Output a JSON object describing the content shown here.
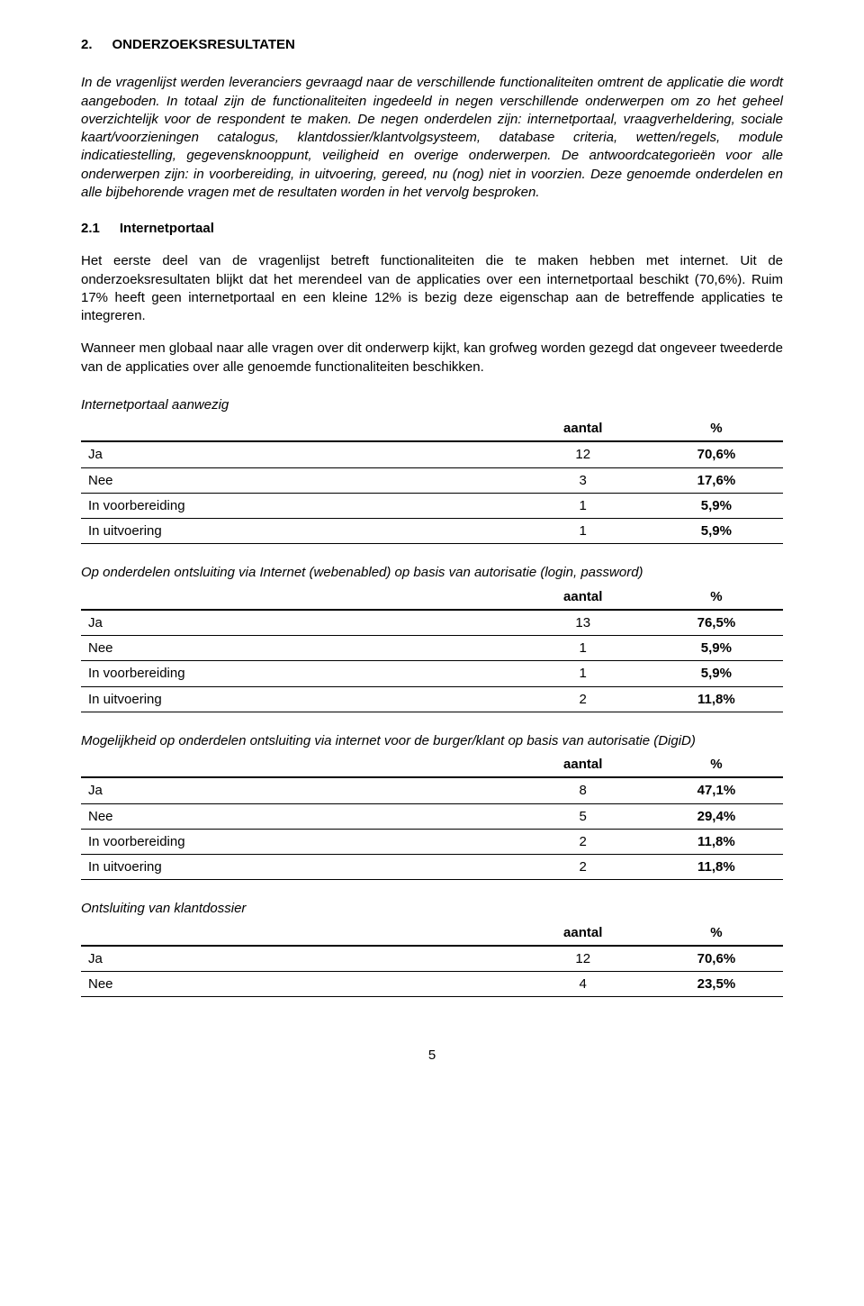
{
  "heading": {
    "num": "2.",
    "title": "ONDERZOEKSRESULTATEN"
  },
  "intro_para": "In de vragenlijst werden leveranciers gevraagd naar de verschillende functionaliteiten omtrent de applicatie die wordt aangeboden. In totaal zijn de functionaliteiten ingedeeld in negen verschillende onderwerpen om zo het geheel overzichtelijk voor de respondent te maken. De negen onderdelen zijn: internetportaal, vraagverheldering, sociale kaart/voorzieningen catalogus, klantdossier/klantvolgsysteem, database criteria, wetten/regels, module indicatiestelling, gegevensknooppunt, veiligheid en overige onderwerpen. De antwoordcategorieën voor alle onderwerpen zijn: in voorbereiding, in uitvoering, gereed, nu (nog) niet in voorzien. Deze genoemde onderdelen en alle bijbehorende vragen met de resultaten worden in het vervolg besproken.",
  "sub": {
    "num": "2.1",
    "title": "Internetportaal"
  },
  "body_para": "Het eerste deel van de vragenlijst betreft functionaliteiten die te maken hebben met internet. Uit de onderzoeksresultaten blijkt dat het merendeel van de applicaties over een internetportaal beschikt (70,6%). Ruim 17% heeft geen internetportaal en een kleine 12% is bezig deze eigenschap aan de betreffende applicaties te integreren.",
  "body_para2": "Wanneer men globaal naar alle vragen over dit onderwerp kijkt, kan grofweg worden gezegd dat ongeveer tweederde van de applicaties over alle genoemde functionaliteiten beschikken.",
  "table_headers": {
    "c2": "aantal",
    "c3": "%"
  },
  "tables": [
    {
      "title": "Internetportaal aanwezig",
      "rows": [
        {
          "label": "Ja",
          "count": "12",
          "pct": "70,6%"
        },
        {
          "label": "Nee",
          "count": "3",
          "pct": "17,6%"
        },
        {
          "label": "In voorbereiding",
          "count": "1",
          "pct": "5,9%"
        },
        {
          "label": "In uitvoering",
          "count": "1",
          "pct": "5,9%"
        }
      ]
    },
    {
      "title": "Op onderdelen ontsluiting via Internet (webenabled) op basis van autorisatie (login, password)",
      "rows": [
        {
          "label": "Ja",
          "count": "13",
          "pct": "76,5%"
        },
        {
          "label": "Nee",
          "count": "1",
          "pct": "5,9%"
        },
        {
          "label": "In voorbereiding",
          "count": "1",
          "pct": "5,9%"
        },
        {
          "label": "In uitvoering",
          "count": "2",
          "pct": "11,8%"
        }
      ]
    },
    {
      "title": "Mogelijkheid op onderdelen ontsluiting via internet voor de burger/klant op basis van autorisatie (DigiD)",
      "rows": [
        {
          "label": "Ja",
          "count": "8",
          "pct": "47,1%"
        },
        {
          "label": "Nee",
          "count": "5",
          "pct": "29,4%"
        },
        {
          "label": "In voorbereiding",
          "count": "2",
          "pct": "11,8%"
        },
        {
          "label": "In uitvoering",
          "count": "2",
          "pct": "11,8%"
        }
      ]
    },
    {
      "title": "Ontsluiting van klantdossier",
      "rows": [
        {
          "label": "Ja",
          "count": "12",
          "pct": "70,6%"
        },
        {
          "label": "Nee",
          "count": "4",
          "pct": "23,5%"
        }
      ]
    }
  ],
  "page_number": "5",
  "colors": {
    "text": "#000000",
    "background": "#ffffff",
    "border": "#000000"
  }
}
